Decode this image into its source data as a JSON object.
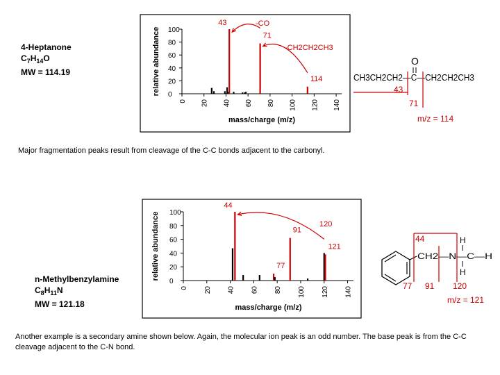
{
  "compound1": {
    "name": "4-Heptanone",
    "formula_parts": [
      [
        "C",
        ""
      ],
      [
        "7",
        "sub"
      ],
      [
        "H",
        ""
      ],
      [
        "14",
        "sub"
      ],
      [
        "O",
        ""
      ]
    ],
    "mw": "MW = 114.19",
    "caption": "Major fragmentation peaks result from cleavage of the C-C bonds adjacent to the carbonyl."
  },
  "compound2": {
    "name": "n-Methylbenzylamine",
    "formula_parts": [
      [
        "C",
        ""
      ],
      [
        "8",
        "sub"
      ],
      [
        "H",
        ""
      ],
      [
        "11",
        "sub"
      ],
      [
        "N",
        ""
      ]
    ],
    "mw": "MW = 121.18",
    "caption": "Another example is a secondary amine shown below.  Again, the molecular ion peak is an odd number.  The base peak is from the C-C cleavage adjacent to the C-N bond."
  },
  "colors": {
    "accent": "#cc0000",
    "bars": "#000000",
    "frame": "#000000"
  },
  "chart_data": [
    {
      "type": "bar",
      "title": "",
      "xlabel": "mass/charge (m/z)",
      "ylabel": "relative abundance",
      "xlim": [
        0,
        145
      ],
      "ylim": [
        0,
        100
      ],
      "xticks": [
        0,
        20,
        40,
        60,
        80,
        100,
        120,
        140
      ],
      "yticks": [
        0,
        20,
        40,
        60,
        80,
        100
      ],
      "grid": false,
      "peaks": [
        {
          "x": 27,
          "y": 9
        },
        {
          "x": 29,
          "y": 4
        },
        {
          "x": 39,
          "y": 4
        },
        {
          "x": 41,
          "y": 10
        },
        {
          "x": 42,
          "y": 3
        },
        {
          "x": 43,
          "y": 100,
          "highlight": true,
          "label": "43"
        },
        {
          "x": 47,
          "y": 3
        },
        {
          "x": 55,
          "y": 2
        },
        {
          "x": 57,
          "y": 2
        },
        {
          "x": 58,
          "y": 3
        },
        {
          "x": 71,
          "y": 78,
          "highlight": true,
          "label": "71"
        },
        {
          "x": 114,
          "y": 11,
          "highlight": true,
          "label": "114"
        }
      ],
      "annotations": [
        {
          "text": "-CO",
          "from": 71,
          "to": 43
        },
        {
          "text": "-CH2CH2CH3",
          "from": 114,
          "to": 71
        }
      ]
    },
    {
      "type": "bar",
      "title": "",
      "xlabel": "mass/charge (m/z)",
      "ylabel": "relative abundance",
      "xlim": [
        0,
        145
      ],
      "ylim": [
        0,
        100
      ],
      "xticks": [
        0,
        20,
        40,
        60,
        80,
        100,
        120,
        140
      ],
      "yticks": [
        0,
        20,
        40,
        60,
        80,
        100
      ],
      "grid": false,
      "peaks": [
        {
          "x": 42,
          "y": 47
        },
        {
          "x": 44,
          "y": 100,
          "highlight": true,
          "label": "44"
        },
        {
          "x": 51,
          "y": 8
        },
        {
          "x": 65,
          "y": 8
        },
        {
          "x": 77,
          "y": 10,
          "highlight": true,
          "label": "77"
        },
        {
          "x": 78,
          "y": 5
        },
        {
          "x": 91,
          "y": 62,
          "highlight": true,
          "label": "91"
        },
        {
          "x": 106,
          "y": 3
        },
        {
          "x": 120,
          "y": 40
        },
        {
          "x": 121,
          "y": 38,
          "highlight": true,
          "label": "121"
        }
      ],
      "annotations": [
        {
          "text": "120",
          "from": 120,
          "to": 44
        }
      ]
    }
  ],
  "structure1": {
    "chain": "CH3CH2CH2—C—CH2CH2CH3",
    "oxygen": "O",
    "frag_left": "43",
    "frag_right": "71",
    "mz": "m/z = 114"
  },
  "structure2": {
    "ch2n": "CH2—N—C—H",
    "h_top": "H",
    "h_bottom": "H",
    "frag_44": "44",
    "frag_77": "77",
    "frag_91": "91",
    "frag_120": "120",
    "mz": "m/z = 121"
  }
}
